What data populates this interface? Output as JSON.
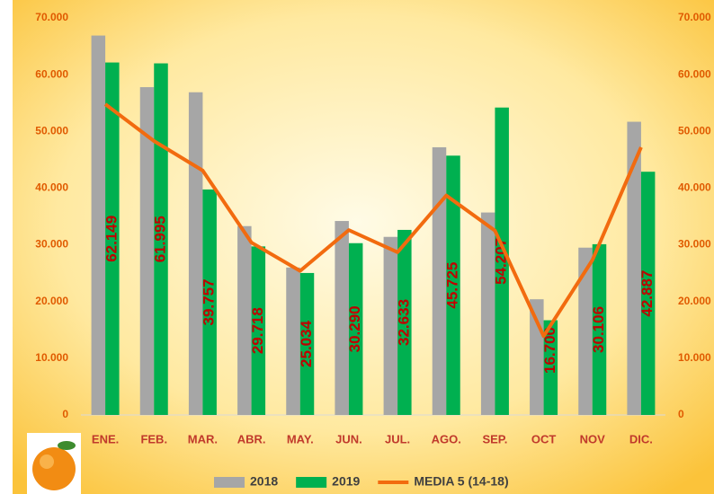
{
  "chart_data": {
    "type": "bar",
    "categories": [
      "ENE.",
      "FEB.",
      "MAR.",
      "ABR.",
      "MAY.",
      "JUN.",
      "JUL.",
      "AGO.",
      "SEP.",
      "OCT",
      "NOV",
      "DIC."
    ],
    "series": [
      {
        "name": "2018",
        "type": "bar",
        "color": "#a6a6a6",
        "values": [
          66900,
          57800,
          56900,
          33300,
          26000,
          34200,
          31400,
          47200,
          35700,
          20400,
          29500,
          51700
        ]
      },
      {
        "name": "2019",
        "type": "bar",
        "color": "#00b050",
        "values": [
          62149,
          61995,
          39757,
          29718,
          25034,
          30290,
          32633,
          45725,
          54207,
          16700,
          30106,
          42887
        ],
        "value_labels": [
          "62.149",
          "61.995",
          "39.757",
          "29.718",
          "25.034",
          "30.290",
          "32.633",
          "45.725",
          "54.207",
          "16.700",
          "30.106",
          "42.887"
        ]
      },
      {
        "name": "MEDIA 5 (14-18)",
        "type": "line",
        "color": "#f26b0f",
        "axis": "y2",
        "values": [
          54800,
          48300,
          43100,
          30400,
          25400,
          32600,
          28700,
          38700,
          32500,
          13900,
          27300,
          47200
        ]
      }
    ],
    "ylim": [
      0,
      70000
    ],
    "yticks": [
      0,
      {
        "value": 10000,
        "label": "10.000"
      },
      {
        "value": 20000,
        "label": "20.000"
      },
      {
        "value": 30000,
        "label": "30.000"
      },
      {
        "value": 40000,
        "label": "40.000"
      },
      {
        "value": 50000,
        "label": "50.000"
      },
      {
        "value": 60000,
        "label": "60.000"
      },
      {
        "value": 70000,
        "label": "70.000"
      }
    ],
    "y2lim": [
      0,
      70000
    ],
    "y2ticks": [
      0,
      {
        "value": 10000,
        "label": "10.000"
      },
      {
        "value": 20000,
        "label": "20.000"
      },
      {
        "value": 30000,
        "label": "30.000"
      },
      {
        "value": 40000,
        "label": "40.000"
      },
      {
        "value": 50000,
        "label": "50.000"
      },
      {
        "value": 60000,
        "label": "60.000"
      },
      {
        "value": 70000,
        "label": "70.000"
      }
    ],
    "legend": "bottom"
  }
}
